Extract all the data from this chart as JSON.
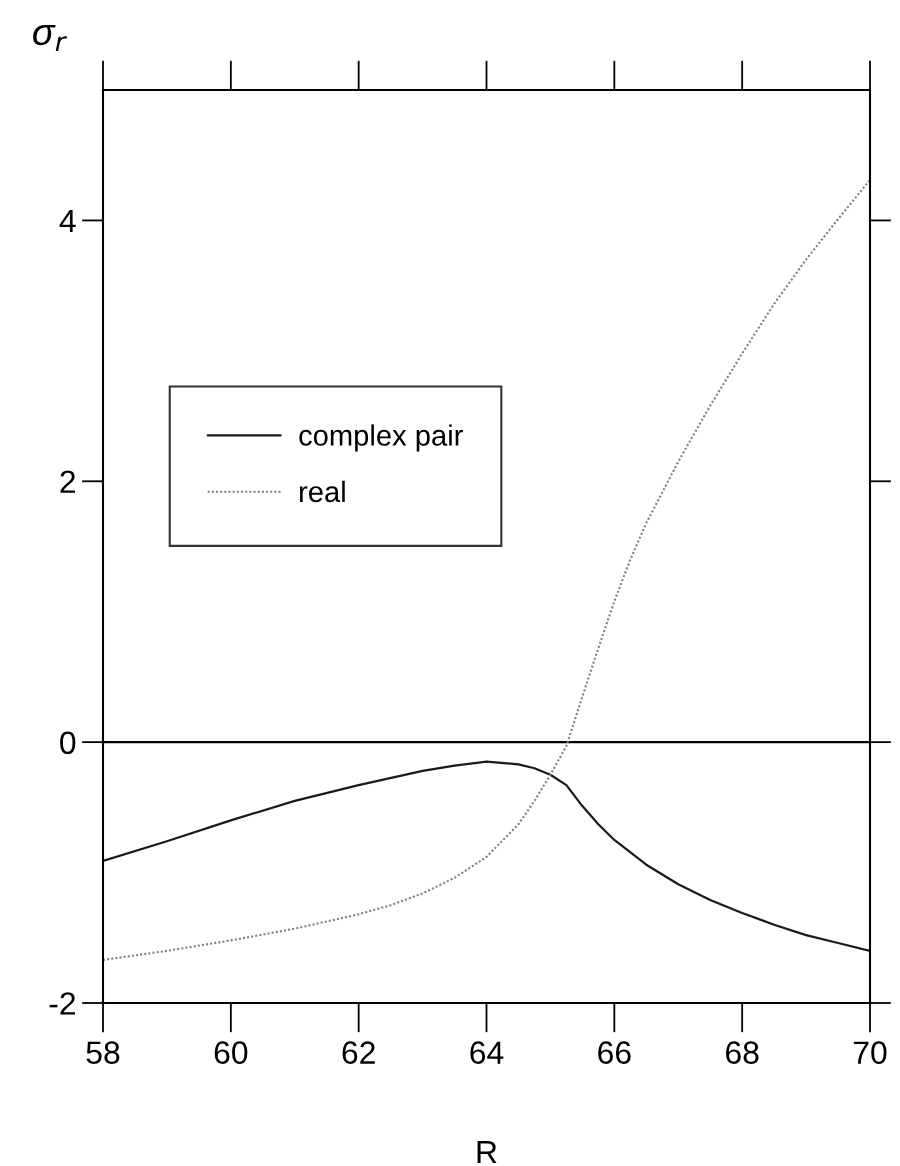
{
  "chart_data": {
    "type": "line",
    "xlabel": "R",
    "ylabel": "σ$_{r}$",
    "xlim": [
      58,
      70
    ],
    "xticks": [
      58,
      60,
      62,
      64,
      66,
      68,
      70
    ],
    "ylim": [
      -2,
      5
    ],
    "yticks": [
      -2,
      0,
      2,
      4
    ],
    "legend": "center left",
    "ref_lines": [
      {
        "axis": "y",
        "value": 0,
        "color": "#000000",
        "line_style": "solid"
      }
    ],
    "series": [
      {
        "name": "complex pair",
        "color": "#1a1a1a",
        "line_style": "solid",
        "x": [
          58,
          59,
          60,
          61,
          62,
          63,
          63.5,
          64,
          64.5,
          64.75,
          65,
          65.25,
          65.5,
          65.75,
          66,
          66.5,
          67,
          67.5,
          68,
          68.5,
          69,
          69.5,
          70
        ],
        "values": [
          -0.91,
          -0.76,
          -0.6,
          -0.45,
          -0.33,
          -0.22,
          -0.18,
          -0.15,
          -0.17,
          -0.2,
          -0.25,
          -0.33,
          -0.49,
          -0.63,
          -0.75,
          -0.94,
          -1.09,
          -1.21,
          -1.31,
          -1.4,
          -1.48,
          -1.54,
          -1.6
        ]
      },
      {
        "name": "real",
        "color": "#808080",
        "line_style": "dotted",
        "x": [
          58,
          59,
          60,
          61,
          62,
          62.5,
          63,
          63.5,
          64,
          64.5,
          64.75,
          65,
          65.25,
          65.5,
          65.75,
          66,
          66.25,
          66.5,
          67,
          67.5,
          68,
          68.5,
          69,
          69.5,
          70
        ],
        "values": [
          -1.67,
          -1.6,
          -1.52,
          -1.43,
          -1.32,
          -1.25,
          -1.16,
          -1.04,
          -0.88,
          -0.63,
          -0.45,
          -0.25,
          -0.03,
          0.35,
          0.72,
          1.08,
          1.4,
          1.68,
          2.15,
          2.58,
          2.98,
          3.36,
          3.7,
          4.01,
          4.31
        ]
      }
    ]
  }
}
